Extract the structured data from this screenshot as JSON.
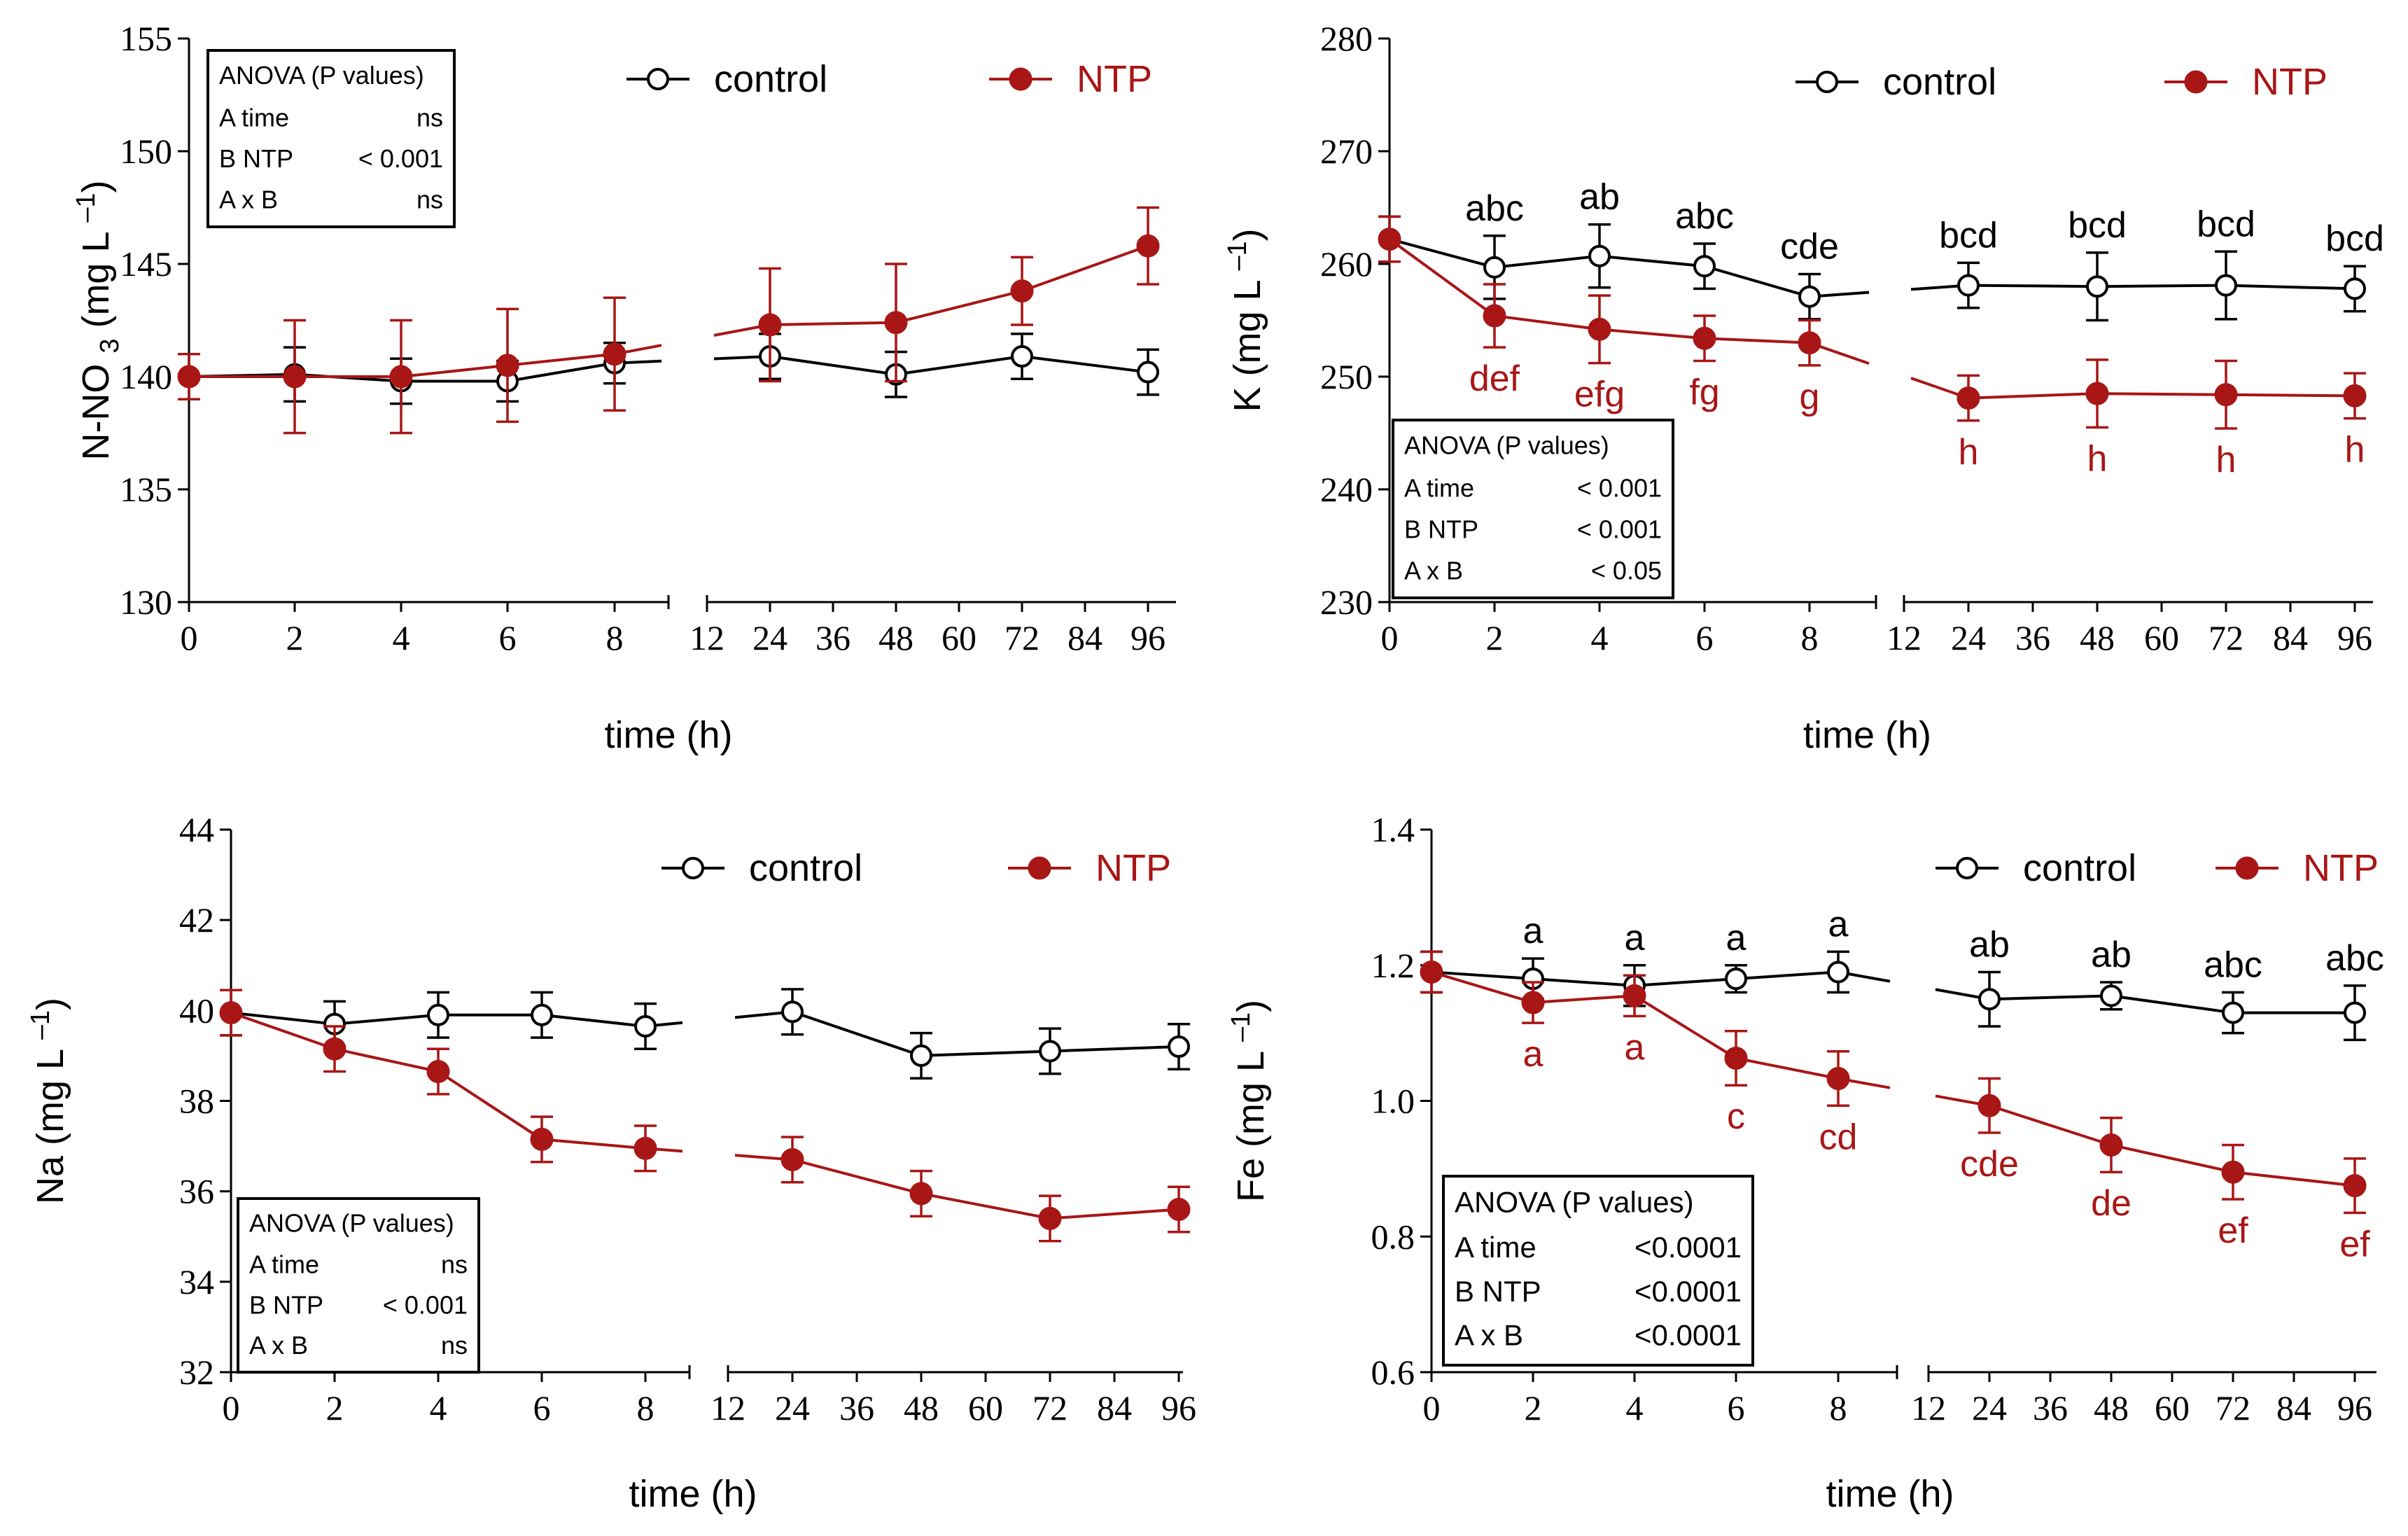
{
  "colors": {
    "control": "#000000",
    "ntp": "#a81616"
  },
  "chart_data": [
    {
      "id": "nno3",
      "type": "line",
      "ylabel": "N-NO 3 (mg L ‒1)",
      "ylabel_parts": {
        "main": "N-NO",
        "sub": "3",
        "unit": "(mg L",
        "sup": "‒1",
        "close": ")"
      },
      "xlabel": "time (h)",
      "ylim": [
        130,
        155
      ],
      "yticks": [
        130,
        135,
        140,
        145,
        150,
        155
      ],
      "x_left_ticks": [
        0,
        2,
        4,
        6,
        8
      ],
      "x_right_ticks": [
        12,
        24,
        36,
        48,
        60,
        72,
        84,
        96
      ],
      "x": [
        0,
        2,
        4,
        6,
        8,
        24,
        48,
        72,
        96
      ],
      "legend": {
        "control": "control",
        "ntp": "NTP"
      },
      "series": [
        {
          "name": "control",
          "values": [
            140.0,
            140.1,
            139.8,
            139.8,
            140.6,
            140.9,
            140.1,
            140.9,
            140.2
          ],
          "errors": [
            1.0,
            1.2,
            1.0,
            0.9,
            0.9,
            1.0,
            1.0,
            1.0,
            1.0
          ],
          "letters": []
        },
        {
          "name": "NTP",
          "values": [
            140.0,
            140.0,
            140.0,
            140.5,
            141.0,
            142.3,
            142.4,
            143.8,
            145.8
          ],
          "errors": [
            1.0,
            2.5,
            2.5,
            2.5,
            2.5,
            2.5,
            2.6,
            1.5,
            1.7
          ],
          "letters": []
        }
      ],
      "anova": {
        "title": "ANOVA (P values)",
        "rows": [
          {
            "label": "A time",
            "value": "ns"
          },
          {
            "label": "B NTP",
            "value": "< 0.001"
          },
          {
            "label": "A x B",
            "value": "ns"
          }
        ]
      }
    },
    {
      "id": "k",
      "type": "line",
      "ylabel": "K (mg L ‒1)",
      "ylabel_parts": {
        "main": "K",
        "sub": "",
        "unit": "(mg L",
        "sup": "‒1",
        "close": ")"
      },
      "xlabel": "time (h)",
      "ylim": [
        230,
        280
      ],
      "yticks": [
        230,
        240,
        250,
        260,
        270,
        280
      ],
      "x_left_ticks": [
        0,
        2,
        4,
        6,
        8
      ],
      "x_right_ticks": [
        12,
        24,
        36,
        48,
        60,
        72,
        84,
        96
      ],
      "x": [
        0,
        2,
        4,
        6,
        8,
        24,
        48,
        72,
        96
      ],
      "legend": {
        "control": "control",
        "ntp": "NTP"
      },
      "series": [
        {
          "name": "control",
          "values": [
            262.2,
            259.7,
            260.7,
            259.8,
            257.1,
            258.1,
            258.0,
            258.1,
            257.8
          ],
          "errors": [
            2.0,
            2.8,
            2.8,
            2.0,
            2.0,
            2.0,
            3.0,
            3.0,
            2.0
          ],
          "letters": [
            "",
            "abc",
            "ab",
            "abc",
            "cde",
            "bcd",
            "bcd",
            "bcd",
            "bcd"
          ]
        },
        {
          "name": "NTP",
          "values": [
            262.2,
            255.4,
            254.2,
            253.4,
            253.0,
            248.1,
            248.5,
            248.4,
            248.3
          ],
          "errors": [
            2.0,
            2.8,
            3.0,
            2.0,
            2.0,
            2.0,
            3.0,
            3.0,
            2.0
          ],
          "letters": [
            "",
            "def",
            "efg",
            "fg",
            "g",
            "h",
            "h",
            "h",
            "h"
          ]
        }
      ],
      "anova": {
        "title": "ANOVA (P values)",
        "rows": [
          {
            "label": "A time",
            "value": "< 0.001"
          },
          {
            "label": "B NTP",
            "value": "< 0.001"
          },
          {
            "label": "A x B",
            "value": "< 0.05"
          }
        ]
      }
    },
    {
      "id": "na",
      "type": "line",
      "ylabel": "Na (mg L ‒1)",
      "ylabel_parts": {
        "main": "Na",
        "sub": "",
        "unit": "(mg L",
        "sup": "‒1",
        "close": ")"
      },
      "xlabel": "time (h)",
      "ylim": [
        32,
        44
      ],
      "yticks": [
        32,
        34,
        36,
        38,
        40,
        42,
        44
      ],
      "x_left_ticks": [
        0,
        2,
        4,
        6,
        8
      ],
      "x_right_ticks": [
        12,
        24,
        36,
        48,
        60,
        72,
        84,
        96
      ],
      "x": [
        0,
        2,
        4,
        6,
        8,
        24,
        48,
        72,
        96
      ],
      "legend": {
        "control": "control",
        "ntp": "NTP"
      },
      "series": [
        {
          "name": "control",
          "values": [
            39.95,
            39.7,
            39.9,
            39.9,
            39.65,
            39.97,
            39.0,
            39.1,
            39.2
          ],
          "errors": [
            0.5,
            0.5,
            0.5,
            0.5,
            0.5,
            0.5,
            0.5,
            0.5,
            0.5
          ],
          "letters": []
        },
        {
          "name": "NTP",
          "values": [
            39.95,
            39.15,
            38.65,
            37.15,
            36.95,
            36.7,
            35.95,
            35.4,
            35.6
          ],
          "errors": [
            0.5,
            0.5,
            0.5,
            0.5,
            0.5,
            0.5,
            0.5,
            0.5,
            0.5
          ],
          "letters": []
        }
      ],
      "anova": {
        "title": "ANOVA (P values)",
        "rows": [
          {
            "label": "A time",
            "value": "ns"
          },
          {
            "label": "B NTP",
            "value": "< 0.001"
          },
          {
            "label": "A x B",
            "value": "ns"
          }
        ]
      }
    },
    {
      "id": "fe",
      "type": "line",
      "ylabel": "Fe (mg L ‒1)",
      "ylabel_parts": {
        "main": "Fe",
        "sub": "",
        "unit": "(mg L",
        "sup": "‒1",
        "close": ")"
      },
      "xlabel": "time (h)",
      "ylim": [
        0.6,
        1.4
      ],
      "yticks": [
        0.6,
        0.8,
        1.0,
        1.2,
        1.4
      ],
      "x_left_ticks": [
        0,
        2,
        4,
        6,
        8
      ],
      "x_right_ticks": [
        12,
        24,
        36,
        48,
        60,
        72,
        84,
        96
      ],
      "x": [
        0,
        2,
        4,
        6,
        8,
        24,
        48,
        72,
        96
      ],
      "legend": {
        "control": "control",
        "ntp": "NTP"
      },
      "series": [
        {
          "name": "control",
          "values": [
            1.19,
            1.18,
            1.17,
            1.18,
            1.19,
            1.15,
            1.155,
            1.13,
            1.13
          ],
          "errors": [
            0.03,
            0.03,
            0.03,
            0.02,
            0.03,
            0.04,
            0.02,
            0.03,
            0.04
          ],
          "letters": [
            "",
            "a",
            "a",
            "a",
            "a",
            "ab",
            "ab",
            "abc",
            "abc"
          ]
        },
        {
          "name": "NTP",
          "values": [
            1.19,
            1.145,
            1.155,
            1.063,
            1.033,
            0.993,
            0.935,
            0.895,
            0.875
          ],
          "errors": [
            0.03,
            0.03,
            0.03,
            0.04,
            0.04,
            0.04,
            0.04,
            0.04,
            0.04
          ],
          "letters": [
            "",
            "a",
            "a",
            "c",
            "cd",
            "cde",
            "de",
            "ef",
            "ef"
          ]
        }
      ],
      "anova": {
        "title": "ANOVA (P values)",
        "rows": [
          {
            "label": "A time",
            "value": "<0.0001"
          },
          {
            "label": "B NTP",
            "value": "<0.0001"
          },
          {
            "label": "A x B",
            "value": "<0.0001"
          }
        ]
      }
    }
  ]
}
